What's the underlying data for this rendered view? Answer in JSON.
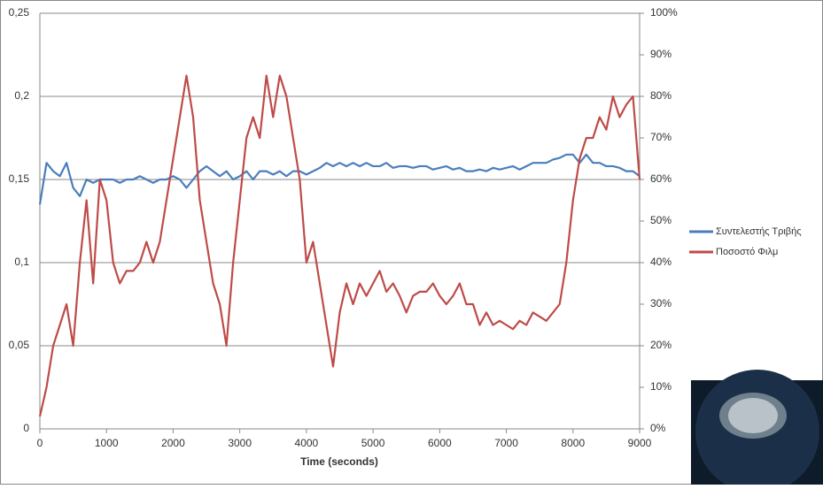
{
  "chart_data": {
    "type": "line",
    "x_label": "Time (seconds)",
    "x": [
      0,
      100,
      200,
      300,
      400,
      500,
      600,
      700,
      800,
      900,
      1000,
      1100,
      1200,
      1300,
      1400,
      1500,
      1600,
      1700,
      1800,
      1900,
      2000,
      2100,
      2200,
      2300,
      2400,
      2500,
      2600,
      2700,
      2800,
      2900,
      3000,
      3100,
      3200,
      3300,
      3400,
      3500,
      3600,
      3700,
      3800,
      3900,
      4000,
      4100,
      4200,
      4300,
      4400,
      4500,
      4600,
      4700,
      4800,
      4900,
      5000,
      5100,
      5200,
      5300,
      5400,
      5500,
      5600,
      5700,
      5800,
      5900,
      6000,
      6100,
      6200,
      6300,
      6400,
      6500,
      6600,
      6700,
      6800,
      6900,
      7000,
      7100,
      7200,
      7300,
      7400,
      7500,
      7600,
      7700,
      7800,
      7900,
      8000,
      8100,
      8200,
      8300,
      8400,
      8500,
      8600,
      8700,
      8800,
      8900,
      9000
    ],
    "xlim": [
      0,
      9000
    ],
    "xticks": [
      0,
      1000,
      2000,
      3000,
      4000,
      5000,
      6000,
      7000,
      8000,
      9000
    ],
    "ylim": [
      0,
      0.25
    ],
    "yticks": [
      {
        "value": 0,
        "label": "0"
      },
      {
        "value": 0.05,
        "label": "0,05"
      },
      {
        "value": 0.1,
        "label": "0,1"
      },
      {
        "value": 0.15,
        "label": "0,15"
      },
      {
        "value": 0.2,
        "label": "0,2"
      },
      {
        "value": 0.25,
        "label": "0,25"
      }
    ],
    "y2lim": [
      0,
      100
    ],
    "y2ticks": [
      {
        "value": 0,
        "label": "0%"
      },
      {
        "value": 10,
        "label": "10%"
      },
      {
        "value": 20,
        "label": "20%"
      },
      {
        "value": 30,
        "label": "30%"
      },
      {
        "value": 40,
        "label": "40%"
      },
      {
        "value": 50,
        "label": "50%"
      },
      {
        "value": 60,
        "label": "60%"
      },
      {
        "value": 70,
        "label": "70%"
      },
      {
        "value": 80,
        "label": "80%"
      },
      {
        "value": 90,
        "label": "90%"
      },
      {
        "value": 100,
        "label": "100%"
      }
    ],
    "grid": true,
    "legend": "right",
    "series": [
      {
        "name": "Συντελεστής Τριβής",
        "color": "#4a7ebb",
        "axis": "y",
        "values": [
          0.135,
          0.16,
          0.155,
          0.152,
          0.16,
          0.145,
          0.14,
          0.15,
          0.148,
          0.15,
          0.15,
          0.15,
          0.148,
          0.15,
          0.15,
          0.152,
          0.15,
          0.148,
          0.15,
          0.15,
          0.152,
          0.15,
          0.145,
          0.15,
          0.155,
          0.158,
          0.155,
          0.152,
          0.155,
          0.15,
          0.152,
          0.155,
          0.15,
          0.155,
          0.155,
          0.153,
          0.155,
          0.152,
          0.155,
          0.155,
          0.153,
          0.155,
          0.157,
          0.16,
          0.158,
          0.16,
          0.158,
          0.16,
          0.158,
          0.16,
          0.158,
          0.158,
          0.16,
          0.157,
          0.158,
          0.158,
          0.157,
          0.158,
          0.158,
          0.156,
          0.157,
          0.158,
          0.156,
          0.157,
          0.155,
          0.155,
          0.156,
          0.155,
          0.157,
          0.156,
          0.157,
          0.158,
          0.156,
          0.158,
          0.16,
          0.16,
          0.16,
          0.162,
          0.163,
          0.165,
          0.165,
          0.16,
          0.165,
          0.16,
          0.16,
          0.158,
          0.158,
          0.157,
          0.155,
          0.155,
          0.152
        ]
      },
      {
        "name": "Ποσοστό Φιλμ",
        "color": "#be4b48",
        "axis": "y2",
        "values": [
          3,
          10,
          20,
          25,
          30,
          20,
          40,
          55,
          35,
          60,
          55,
          40,
          35,
          38,
          38,
          40,
          45,
          40,
          45,
          55,
          65,
          75,
          85,
          75,
          55,
          45,
          35,
          30,
          20,
          40,
          55,
          70,
          75,
          70,
          85,
          75,
          85,
          80,
          70,
          60,
          40,
          45,
          35,
          25,
          15,
          28,
          35,
          30,
          35,
          32,
          35,
          38,
          33,
          35,
          32,
          28,
          32,
          33,
          33,
          35,
          32,
          30,
          32,
          35,
          30,
          30,
          25,
          28,
          25,
          26,
          25,
          24,
          26,
          25,
          28,
          27,
          26,
          28,
          30,
          40,
          55,
          65,
          70,
          70,
          75,
          72,
          80,
          75,
          78,
          80,
          60
        ]
      }
    ]
  }
}
